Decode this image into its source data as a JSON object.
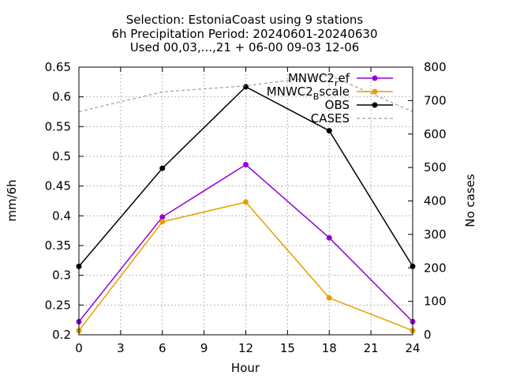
{
  "chart_data": {
    "type": "line",
    "title_lines": [
      "Selection: EstoniaCoast using     9 stations",
      "6h Precipitation   Period: 20240601-20240630",
      "Used 00,03,...,21 + 06-00 09-03 12-06"
    ],
    "xlabel": "Hour",
    "ylabel": "mm/6h",
    "y2label": "No cases",
    "xlim": [
      0,
      24
    ],
    "ylim": [
      0.2,
      0.65
    ],
    "y2lim": [
      0,
      800
    ],
    "xticks": [
      "0",
      "3",
      "6",
      "9",
      "12",
      "15",
      "18",
      "21",
      "24"
    ],
    "yticks": [
      "0.2",
      "0.25",
      "0.3",
      "0.35",
      "0.4",
      "0.45",
      "0.5",
      "0.55",
      "0.6",
      "0.65"
    ],
    "y2ticks": [
      "0",
      "100",
      "200",
      "300",
      "400",
      "500",
      "600",
      "700",
      "800"
    ],
    "grid": true,
    "legend_position": "top-right",
    "x": [
      0,
      6,
      12,
      18,
      24
    ],
    "series": [
      {
        "name": "MNWC2_ref",
        "label_main": "MNWC2",
        "label_sub": "r",
        "label_rest": "ef",
        "color": "#9400d3",
        "axis": "y",
        "values": [
          0.222,
          0.398,
          0.486,
          0.363,
          0.222
        ]
      },
      {
        "name": "MNWC2_Bscale",
        "label_main": "MNWC2",
        "label_sub": "B",
        "label_rest": "scale",
        "color": "#e69f00",
        "axis": "y",
        "values": [
          0.207,
          0.39,
          0.423,
          0.262,
          0.207
        ]
      },
      {
        "name": "OBS",
        "label_main": "OBS",
        "color": "#000000",
        "axis": "y",
        "values": [
          0.315,
          0.48,
          0.617,
          0.543,
          0.315
        ]
      },
      {
        "name": "CASES",
        "label_main": "CASES",
        "color": "#a0a0a0",
        "axis": "y2",
        "dashed": true,
        "values": [
          667,
          726,
          744,
          776,
          667
        ]
      }
    ]
  }
}
